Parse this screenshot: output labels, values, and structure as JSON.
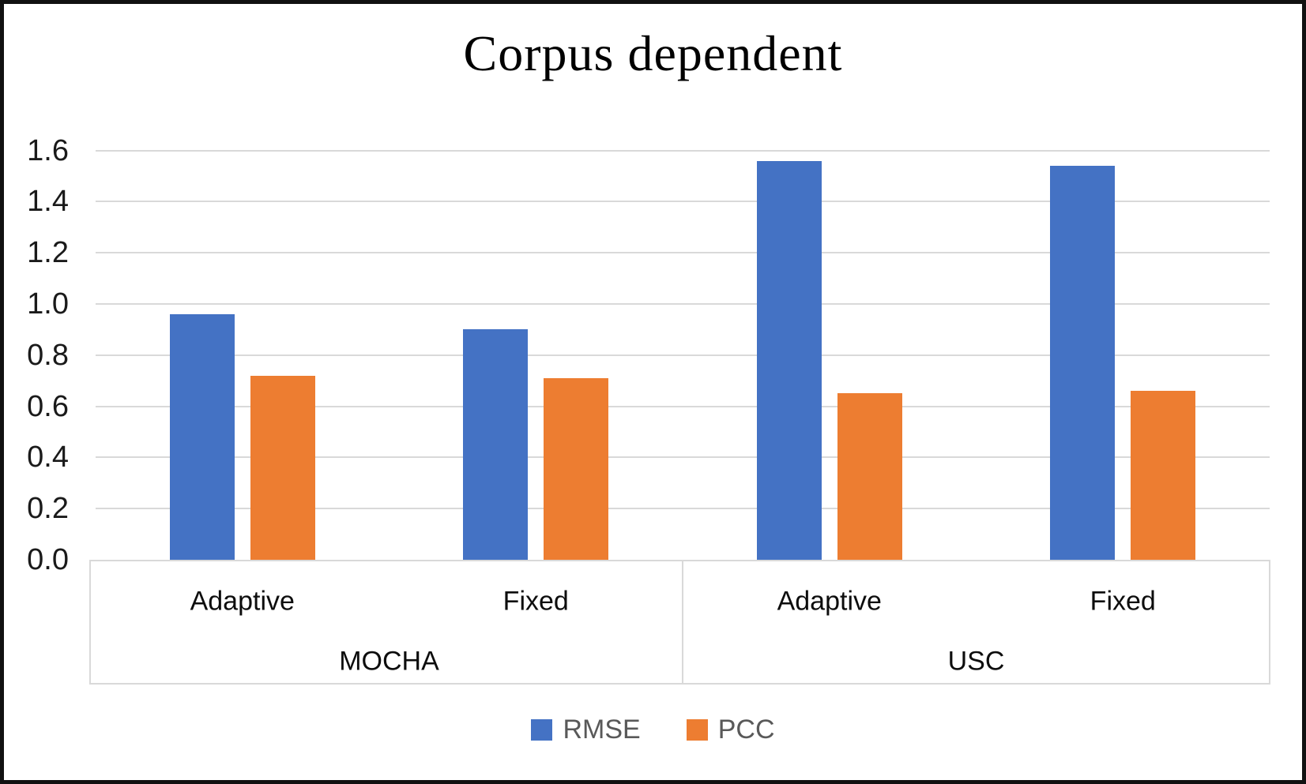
{
  "title": "Corpus dependent",
  "colors": {
    "rmse_blue": "#4472C4",
    "pcc_orange": "#ED7D31",
    "gridline_gray": "#D9D9D9",
    "axis_text": "#1A1A1A",
    "legend_text": "#595959",
    "border_black": "#111111"
  },
  "chart_data": {
    "type": "bar",
    "title": "Corpus dependent",
    "xlabel": "",
    "ylabel": "",
    "ylim": [
      0.0,
      1.6
    ],
    "y_tick_step": 0.2,
    "y_ticks": [
      "1.6",
      "1.4",
      "1.2",
      "1.0",
      "0.8",
      "0.6",
      "0.4",
      "0.2",
      "0.0"
    ],
    "grid": true,
    "legend_position": "bottom",
    "groups": [
      {
        "label": "MOCHA",
        "categories": [
          "Adaptive",
          "Fixed"
        ]
      },
      {
        "label": "USC",
        "categories": [
          "Adaptive",
          "Fixed"
        ]
      }
    ],
    "categories": [
      "MOCHA / Adaptive",
      "MOCHA / Fixed",
      "USC / Adaptive",
      "USC / Fixed"
    ],
    "series": [
      {
        "name": "RMSE",
        "color": "#4472C4",
        "values": [
          0.96,
          0.9,
          1.56,
          1.54
        ]
      },
      {
        "name": "PCC",
        "color": "#ED7D31",
        "values": [
          0.72,
          0.71,
          0.65,
          0.66
        ]
      }
    ]
  },
  "legend": {
    "items": [
      {
        "label": "RMSE"
      },
      {
        "label": "PCC"
      }
    ]
  }
}
